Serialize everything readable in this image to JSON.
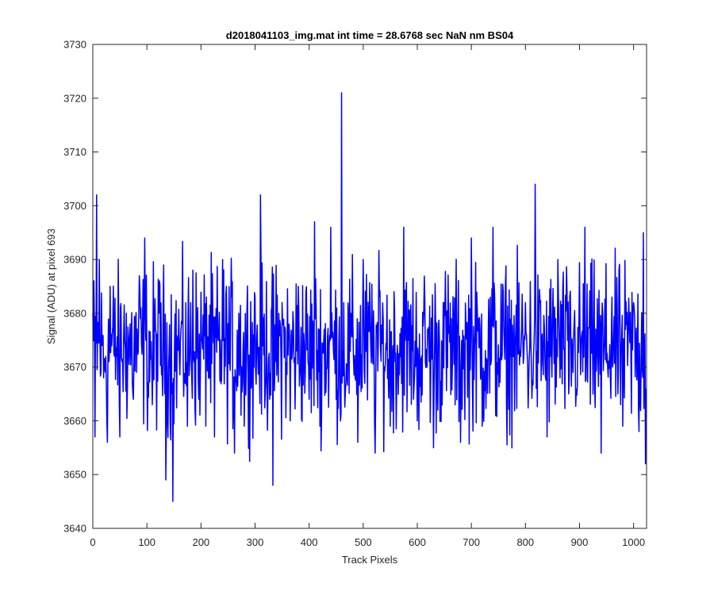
{
  "chart_data": {
    "type": "line",
    "title": "d2018041103_img.mat int time = 28.6768 sec  NaN nm BS04",
    "xlabel": "Track Pixels",
    "ylabel": "Signal (ADU) at pixel 693",
    "xlim": [
      0,
      1024
    ],
    "ylim": [
      3640,
      3730
    ],
    "xticks": [
      0,
      100,
      200,
      300,
      400,
      500,
      600,
      700,
      800,
      900,
      1000
    ],
    "yticks": [
      3640,
      3650,
      3660,
      3670,
      3680,
      3690,
      3700,
      3710,
      3720,
      3730
    ],
    "grid": false,
    "series": [
      {
        "color": "#0000ff",
        "n_points": 1024,
        "mean": 3673.5,
        "noise_range": [
          3655,
          3692
        ],
        "x": [
          0,
          4,
          7,
          12,
          20,
          27,
          32,
          40,
          50,
          62,
          75,
          86,
          96,
          100,
          110,
          122,
          135,
          143,
          148,
          160,
          175,
          185,
          196,
          210,
          225,
          240,
          262,
          270,
          280,
          300,
          310,
          320,
          333,
          350,
          365,
          380,
          400,
          410,
          420,
          440,
          450,
          458,
          460,
          470,
          490,
          500,
          522,
          530,
          550,
          575,
          600,
          630,
          650,
          680,
          700,
          720,
          740,
          765,
          800,
          818,
          840,
          860,
          880,
          910,
          940,
          960,
          980,
          1000,
          1010,
          1018,
          1022
        ],
        "y": [
          3680,
          3657,
          3702,
          3690,
          3668,
          3656,
          3685,
          3672,
          3657,
          3680,
          3664,
          3687,
          3694,
          3670,
          3663,
          3680,
          3649,
          3660,
          3645,
          3672,
          3659,
          3688,
          3664,
          3683,
          3657,
          3690,
          3654,
          3680,
          3659,
          3683,
          3702,
          3668,
          3648,
          3682,
          3660,
          3685,
          3664,
          3697,
          3659,
          3696,
          3664,
          3660,
          3721,
          3668,
          3656,
          3690,
          3654,
          3683,
          3659,
          3696,
          3660,
          3655,
          3682,
          3656,
          3694,
          3659,
          3696,
          3663,
          3682,
          3704,
          3657,
          3690,
          3665,
          3696,
          3654,
          3683,
          3659,
          3682,
          3658,
          3695,
          3652
        ]
      }
    ]
  }
}
